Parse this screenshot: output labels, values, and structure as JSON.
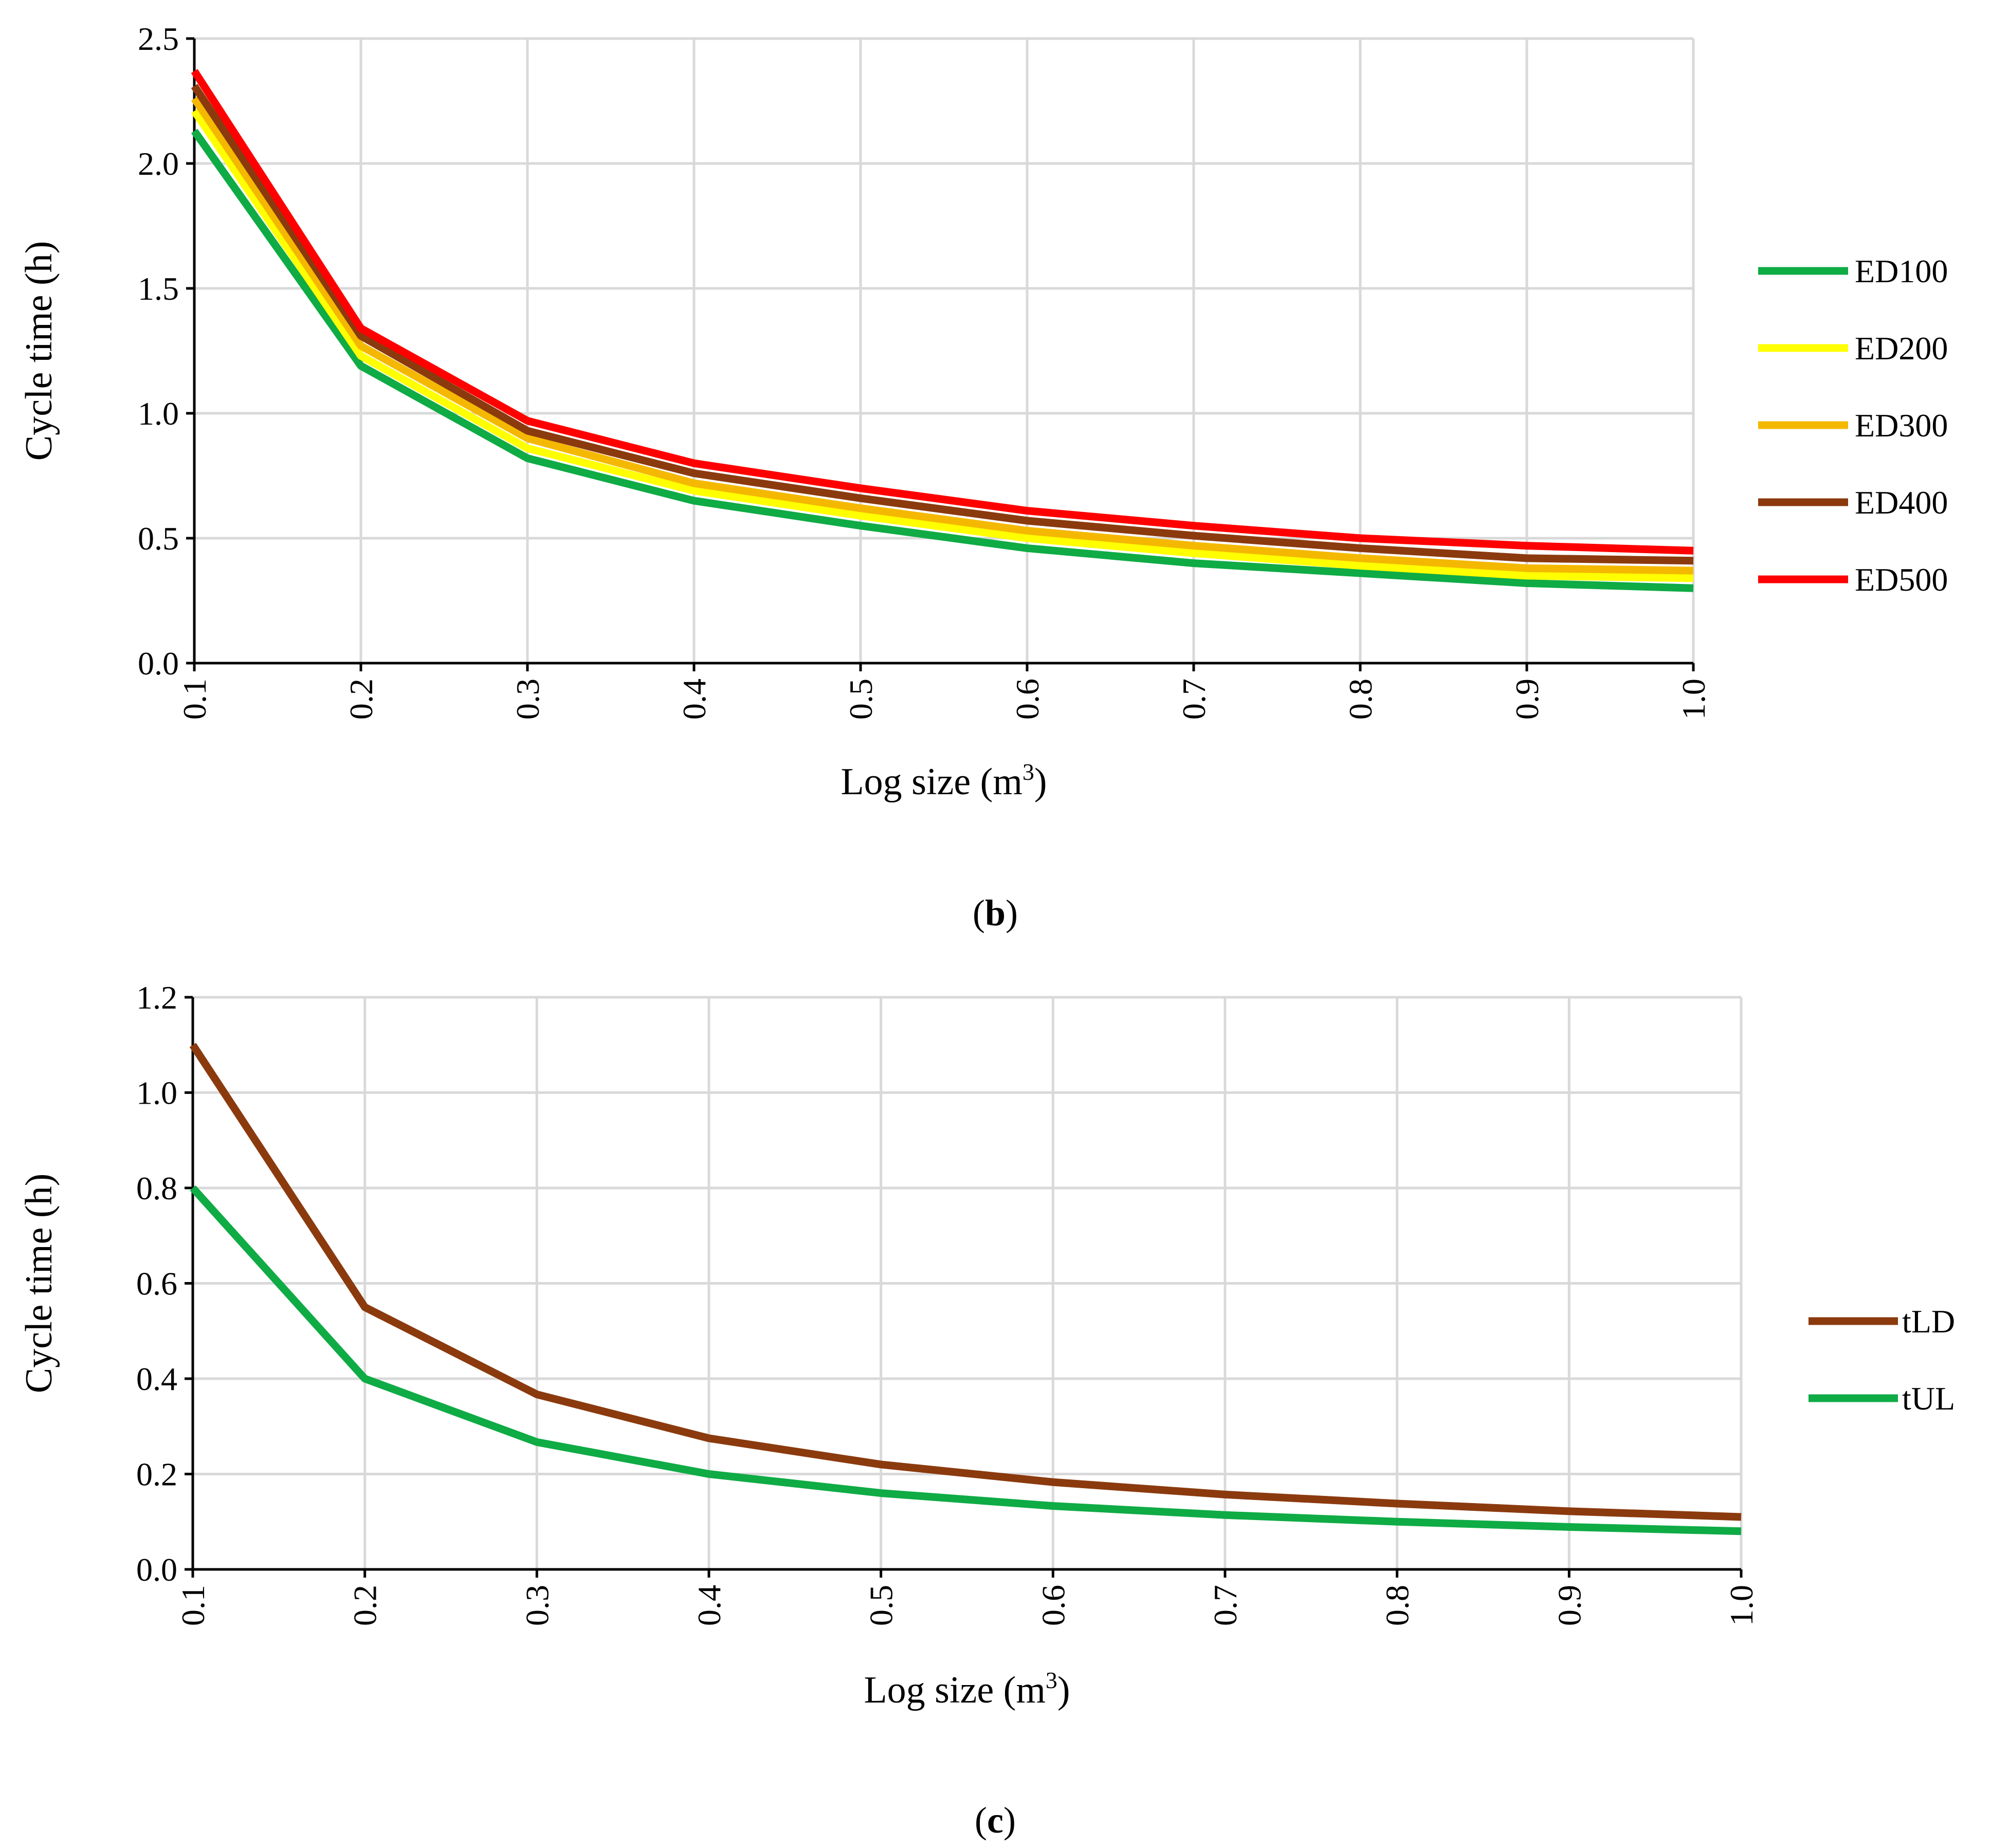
{
  "chart_data": [
    {
      "panel": "b",
      "caption_letter": "b",
      "type": "line",
      "xlabel": "Log size (m",
      "xlabel_sup": "3",
      "xlabel_end": ")",
      "ylabel": "Cycle time (h)",
      "x": [
        0.1,
        0.2,
        0.3,
        0.4,
        0.5,
        0.6,
        0.7,
        0.8,
        0.9,
        1.0
      ],
      "x_tick_labels": [
        "0.1",
        "0.2",
        "0.3",
        "0.4",
        "0.5",
        "0.6",
        "0.7",
        "0.8",
        "0.9",
        "1.0"
      ],
      "ylim": [
        0,
        2.5
      ],
      "y_ticks": [
        0,
        0.5,
        1.0,
        1.5,
        2.0,
        2.5
      ],
      "y_tick_labels": [
        "0.0",
        "0.5",
        "1.0",
        "1.5",
        "2.0",
        "2.5"
      ],
      "grid": true,
      "legend_position": "right",
      "series": [
        {
          "name": "ED100",
          "color": "#0fab45",
          "values": [
            2.13,
            1.19,
            0.82,
            0.65,
            0.55,
            0.46,
            0.4,
            0.36,
            0.32,
            0.3
          ]
        },
        {
          "name": "ED200",
          "color": "#ffff00",
          "values": [
            2.21,
            1.23,
            0.86,
            0.69,
            0.59,
            0.5,
            0.44,
            0.39,
            0.35,
            0.34
          ]
        },
        {
          "name": "ED300",
          "color": "#f5b800",
          "values": [
            2.26,
            1.27,
            0.9,
            0.72,
            0.62,
            0.53,
            0.47,
            0.42,
            0.38,
            0.37
          ]
        },
        {
          "name": "ED400",
          "color": "#8b3a0e",
          "values": [
            2.31,
            1.31,
            0.93,
            0.76,
            0.66,
            0.57,
            0.51,
            0.46,
            0.42,
            0.41
          ]
        },
        {
          "name": "ED500",
          "color": "#ff0000",
          "values": [
            2.37,
            1.34,
            0.97,
            0.8,
            0.7,
            0.61,
            0.55,
            0.5,
            0.47,
            0.45
          ]
        }
      ]
    },
    {
      "panel": "c",
      "caption_letter": "c",
      "type": "line",
      "xlabel": "Log size (m",
      "xlabel_sup": "3",
      "xlabel_end": ")",
      "ylabel": "Cycle time (h)",
      "x": [
        0.1,
        0.2,
        0.3,
        0.4,
        0.5,
        0.6,
        0.7,
        0.8,
        0.9,
        1.0
      ],
      "x_tick_labels": [
        "0.1",
        "0.2",
        "0.3",
        "0.4",
        "0.5",
        "0.6",
        "0.7",
        "0.8",
        "0.9",
        "1.0"
      ],
      "ylim": [
        0,
        1.2
      ],
      "y_ticks": [
        0,
        0.2,
        0.4,
        0.6,
        0.8,
        1.0,
        1.2
      ],
      "y_tick_labels": [
        "0.0",
        "0.2",
        "0.4",
        "0.6",
        "0.8",
        "1.0",
        "1.2"
      ],
      "grid": true,
      "legend_position": "right",
      "series": [
        {
          "name": "tLD",
          "color": "#8b3a0e",
          "values": [
            1.1,
            0.55,
            0.367,
            0.275,
            0.22,
            0.183,
            0.157,
            0.138,
            0.122,
            0.11
          ]
        },
        {
          "name": "tUL",
          "color": "#0fab45",
          "values": [
            0.8,
            0.4,
            0.267,
            0.2,
            0.16,
            0.133,
            0.114,
            0.1,
            0.089,
            0.08
          ]
        }
      ]
    }
  ]
}
